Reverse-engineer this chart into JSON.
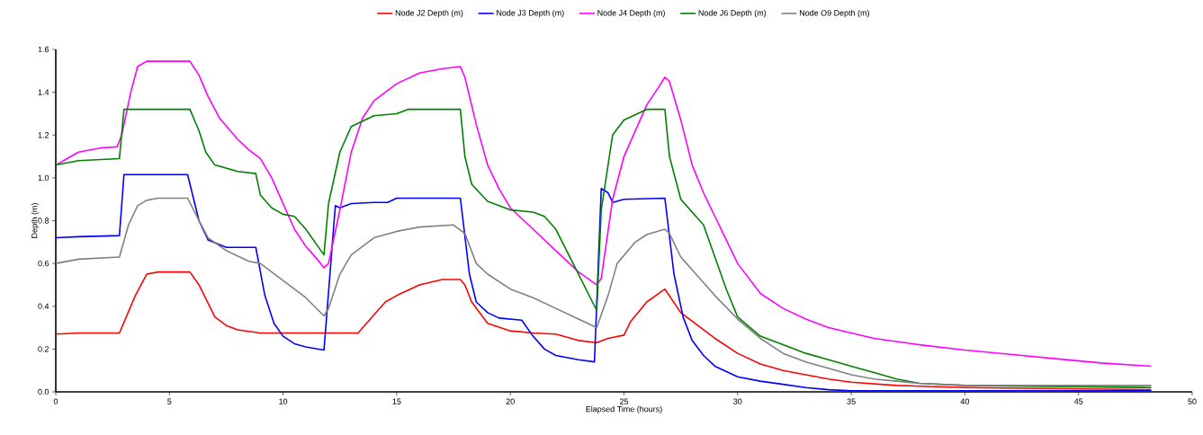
{
  "chart_data": {
    "type": "line",
    "xlabel": "Elapsed Time (hours)",
    "ylabel": "Depth (m)",
    "xlim": [
      0,
      50
    ],
    "ylim": [
      0,
      1.6
    ],
    "xticks": [
      0,
      5,
      10,
      15,
      20,
      25,
      30,
      35,
      40,
      45,
      50
    ],
    "yticks": [
      {
        "value": 0,
        "label": "0.0"
      },
      0.2,
      0.4,
      0.6,
      0.8,
      {
        "value": 1,
        "label": "1.0"
      },
      1.2,
      1.4,
      1.6
    ],
    "grid": false,
    "legend": "top",
    "marker": "none",
    "line_style": "solid",
    "series": [
      {
        "name": "Node J2 Depth (m)",
        "color": "#ff0000",
        "x": [
          0,
          1,
          2.8,
          3.5,
          4,
          4.5,
          5.9,
          6.3,
          7,
          7.5,
          8,
          9,
          11.8,
          13.3,
          14,
          14.5,
          15,
          16,
          17,
          17.8,
          18,
          18.3,
          19,
          20,
          21,
          22,
          23,
          23.8,
          24.3,
          25,
          25.3,
          26,
          26.8,
          27.5,
          28,
          29,
          30,
          31,
          32,
          33,
          34,
          35,
          37,
          40,
          48.2
        ],
        "values": [
          0.27,
          0.275,
          0.275,
          0.45,
          0.55,
          0.56,
          0.56,
          0.5,
          0.35,
          0.31,
          0.29,
          0.275,
          0.275,
          0.275,
          0.36,
          0.42,
          0.45,
          0.5,
          0.525,
          0.525,
          0.5,
          0.42,
          0.32,
          0.285,
          0.275,
          0.27,
          0.24,
          0.23,
          0.25,
          0.265,
          0.33,
          0.42,
          0.48,
          0.37,
          0.33,
          0.25,
          0.18,
          0.13,
          0.1,
          0.08,
          0.06,
          0.045,
          0.03,
          0.02,
          0.01
        ]
      },
      {
        "name": "Node J3 Depth (m)",
        "color": "#0000ff",
        "x": [
          0,
          1,
          2.8,
          3,
          5.8,
          6.3,
          6.7,
          7.5,
          8.8,
          9.2,
          9.6,
          10,
          10.5,
          11,
          11.8,
          12.3,
          12.5,
          13,
          14,
          14.6,
          15,
          17.8,
          18.2,
          18.5,
          19,
          19.5,
          20.5,
          21,
          21.5,
          22,
          23,
          23.7,
          24,
          24.3,
          24.5,
          25,
          26.8,
          27.2,
          27.6,
          28,
          28.5,
          29,
          30,
          31,
          32,
          33,
          34,
          35,
          48.2
        ],
        "values": [
          0.72,
          0.725,
          0.73,
          1.015,
          1.015,
          0.8,
          0.71,
          0.675,
          0.675,
          0.45,
          0.32,
          0.26,
          0.225,
          0.21,
          0.195,
          0.87,
          0.86,
          0.88,
          0.885,
          0.885,
          0.905,
          0.905,
          0.55,
          0.42,
          0.37,
          0.345,
          0.335,
          0.26,
          0.2,
          0.17,
          0.15,
          0.14,
          0.95,
          0.93,
          0.885,
          0.9,
          0.905,
          0.55,
          0.35,
          0.24,
          0.17,
          0.12,
          0.07,
          0.05,
          0.035,
          0.02,
          0.01,
          0.005,
          0.005
        ]
      },
      {
        "name": "Node J4 Depth (m)",
        "color": "#ff00ff",
        "x": [
          0,
          0.5,
          1,
          2,
          2.7,
          2.9,
          3.3,
          3.6,
          4,
          5.9,
          6.3,
          6.7,
          7.2,
          8,
          8.5,
          9,
          9.5,
          10,
          10.5,
          11,
          11.5,
          11.8,
          12,
          12.5,
          13,
          13.5,
          14,
          15,
          16,
          17,
          17.8,
          18,
          18.5,
          19,
          19.5,
          20,
          21,
          22,
          23,
          23.8,
          24,
          24.5,
          25,
          26,
          26.5,
          26.8,
          27,
          27.5,
          28,
          28.5,
          29,
          30,
          31,
          32,
          33,
          34,
          35,
          36,
          38,
          40,
          42,
          44,
          46,
          48.2
        ],
        "values": [
          1.06,
          1.09,
          1.12,
          1.14,
          1.145,
          1.2,
          1.4,
          1.52,
          1.545,
          1.545,
          1.48,
          1.38,
          1.28,
          1.18,
          1.13,
          1.09,
          1.0,
          0.88,
          0.76,
          0.68,
          0.62,
          0.58,
          0.6,
          0.85,
          1.12,
          1.28,
          1.36,
          1.44,
          1.49,
          1.51,
          1.52,
          1.47,
          1.25,
          1.06,
          0.95,
          0.86,
          0.76,
          0.66,
          0.56,
          0.5,
          0.53,
          0.9,
          1.1,
          1.34,
          1.42,
          1.47,
          1.45,
          1.27,
          1.06,
          0.93,
          0.82,
          0.6,
          0.46,
          0.39,
          0.34,
          0.3,
          0.275,
          0.25,
          0.22,
          0.195,
          0.175,
          0.155,
          0.135,
          0.12
        ]
      },
      {
        "name": "Node J6 Depth (m)",
        "color": "#008000",
        "x": [
          0,
          1,
          2.8,
          3,
          5.9,
          6.3,
          6.6,
          7,
          8,
          8.8,
          9,
          9.5,
          10,
          10.5,
          11,
          11.8,
          12,
          12.5,
          13,
          14,
          15,
          15.5,
          17.8,
          18,
          18.3,
          19,
          20,
          21,
          21.5,
          22,
          23,
          23.8,
          24,
          24.5,
          25,
          26,
          26.8,
          27,
          27.5,
          28,
          28.5,
          29,
          29.5,
          30,
          31,
          32,
          33,
          34,
          35,
          36,
          37,
          38,
          40,
          48.2
        ],
        "values": [
          1.06,
          1.08,
          1.09,
          1.32,
          1.32,
          1.22,
          1.12,
          1.06,
          1.03,
          1.02,
          0.92,
          0.86,
          0.83,
          0.82,
          0.76,
          0.64,
          0.88,
          1.12,
          1.24,
          1.29,
          1.3,
          1.32,
          1.32,
          1.1,
          0.97,
          0.89,
          0.85,
          0.84,
          0.82,
          0.76,
          0.55,
          0.38,
          0.85,
          1.2,
          1.27,
          1.32,
          1.32,
          1.1,
          0.9,
          0.84,
          0.78,
          0.63,
          0.48,
          0.35,
          0.26,
          0.22,
          0.18,
          0.15,
          0.12,
          0.09,
          0.06,
          0.04,
          0.03,
          0.02
        ]
      },
      {
        "name": "Node O9 Depth (m)",
        "color": "#808080",
        "x": [
          0,
          1,
          2.8,
          3.2,
          3.6,
          4,
          4.5,
          5.8,
          6.3,
          6.7,
          7.5,
          8.5,
          9,
          10,
          11,
          11.8,
          12,
          12.5,
          13,
          14,
          15,
          16,
          17.5,
          18,
          18.5,
          19,
          20,
          21,
          22,
          23,
          23.8,
          24.3,
          24.7,
          25.5,
          26,
          26.8,
          27,
          27.5,
          28,
          29,
          30,
          31,
          32,
          33,
          34,
          35,
          36,
          37,
          38,
          40,
          48.2
        ],
        "values": [
          0.6,
          0.62,
          0.63,
          0.78,
          0.87,
          0.895,
          0.905,
          0.905,
          0.8,
          0.72,
          0.66,
          0.61,
          0.6,
          0.52,
          0.44,
          0.355,
          0.39,
          0.55,
          0.64,
          0.72,
          0.75,
          0.77,
          0.78,
          0.74,
          0.6,
          0.55,
          0.48,
          0.44,
          0.39,
          0.34,
          0.3,
          0.45,
          0.6,
          0.7,
          0.735,
          0.76,
          0.74,
          0.63,
          0.57,
          0.45,
          0.34,
          0.25,
          0.18,
          0.14,
          0.11,
          0.08,
          0.06,
          0.05,
          0.04,
          0.03,
          0.03
        ]
      }
    ]
  }
}
